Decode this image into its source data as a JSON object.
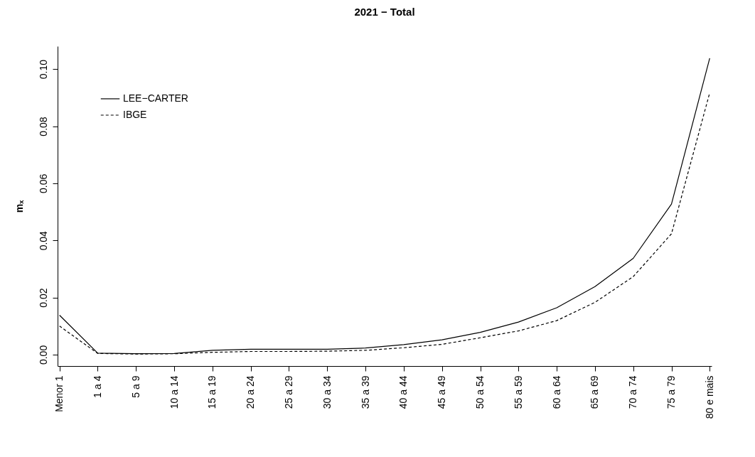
{
  "chart_data": {
    "type": "line",
    "title": "2021 − Total",
    "ylabel": "mₓ",
    "categories": [
      "Menor 1",
      "1 a 4",
      "5 a 9",
      "10 a 14",
      "15 a 19",
      "20 a 24",
      "25 a 29",
      "30 a 34",
      "35 a 39",
      "40 a 44",
      "45 a 49",
      "50 a 54",
      "55 a 59",
      "60 a 64",
      "65 a 69",
      "70 a 74",
      "75 a 79",
      "80 e mais"
    ],
    "series": [
      {
        "name": "LEE−CARTER",
        "color": "#000000",
        "line_style": "solid",
        "values": [
          0.0138,
          0.0005,
          0.0003,
          0.0004,
          0.0015,
          0.0019,
          0.0019,
          0.0019,
          0.0023,
          0.0035,
          0.0052,
          0.0078,
          0.0114,
          0.0164,
          0.0238,
          0.0337,
          0.0527,
          0.1038
        ]
      },
      {
        "name": "IBGE",
        "color": "#000000",
        "line_style": "dashed",
        "values": [
          0.01,
          0.0004,
          0.0002,
          0.0003,
          0.0008,
          0.0011,
          0.0011,
          0.0012,
          0.0015,
          0.0024,
          0.0036,
          0.0059,
          0.0083,
          0.0119,
          0.0183,
          0.0273,
          0.0423,
          0.0917
        ]
      }
    ],
    "ylim": [
      -0.004,
      0.108
    ],
    "yticks": [
      {
        "value": 0,
        "label": "0.00"
      },
      {
        "value": 0.02,
        "label": "0.02"
      },
      {
        "value": 0.04,
        "label": "0.04"
      },
      {
        "value": 0.06,
        "label": "0.06"
      },
      {
        "value": 0.08,
        "label": "0.08"
      },
      {
        "value": 0.1,
        "label": "0.10"
      }
    ],
    "grid": false,
    "legend": "top left",
    "marker": "none"
  }
}
